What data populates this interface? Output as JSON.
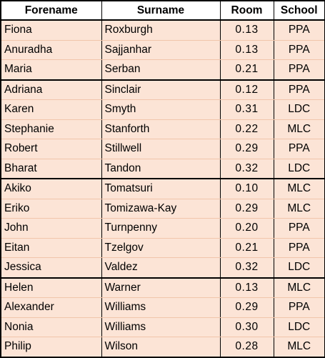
{
  "table": {
    "headers": {
      "forename": "Forename",
      "surname": "Surname",
      "room": "Room",
      "school": "School"
    },
    "rows": [
      {
        "forename": "Fiona",
        "surname": "Roxburgh",
        "room": "0.13",
        "school": "PPA"
      },
      {
        "forename": "Anuradha",
        "surname": "Sajjanhar",
        "room": "0.13",
        "school": "PPA"
      },
      {
        "forename": "Maria",
        "surname": "Serban",
        "room": "0.21",
        "school": "PPA"
      },
      {
        "forename": "Adriana",
        "surname": "Sinclair",
        "room": "0.12",
        "school": "PPA"
      },
      {
        "forename": "Karen",
        "surname": "Smyth",
        "room": "0.31",
        "school": "LDC"
      },
      {
        "forename": "Stephanie",
        "surname": "Stanforth",
        "room": "0.22",
        "school": "MLC"
      },
      {
        "forename": "Robert",
        "surname": "Stillwell",
        "room": "0.29",
        "school": "PPA"
      },
      {
        "forename": "Bharat",
        "surname": "Tandon",
        "room": "0.32",
        "school": "LDC"
      },
      {
        "forename": "Akiko",
        "surname": "Tomatsuri",
        "room": "0.10",
        "school": "MLC"
      },
      {
        "forename": "Eriko",
        "surname": "Tomizawa-Kay",
        "room": "0.29",
        "school": "MLC"
      },
      {
        "forename": "John",
        "surname": "Turnpenny",
        "room": "0.20",
        "school": "PPA"
      },
      {
        "forename": "Eitan",
        "surname": "Tzelgov",
        "room": "0.21",
        "school": "PPA"
      },
      {
        "forename": "Jessica",
        "surname": "Valdez",
        "room": "0.32",
        "school": "LDC"
      },
      {
        "forename": "Helen",
        "surname": "Warner",
        "room": "0.13",
        "school": "MLC"
      },
      {
        "forename": "Alexander",
        "surname": "Williams",
        "room": "0.29",
        "school": "PPA"
      },
      {
        "forename": "Nonia",
        "surname": "Williams",
        "room": "0.30",
        "school": "LDC"
      },
      {
        "forename": "Philip",
        "surname": "Wilson",
        "room": "0.28",
        "school": "MLC"
      }
    ]
  },
  "colors": {
    "row_fill": "#fce4d6",
    "header_fill": "#ffffff",
    "border": "#000000"
  }
}
